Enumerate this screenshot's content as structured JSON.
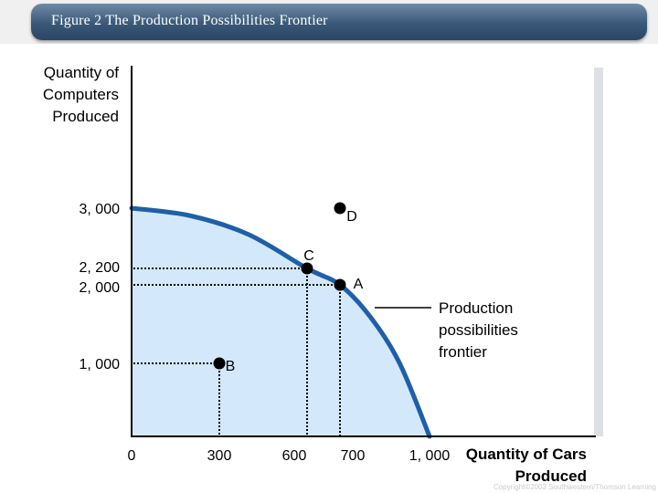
{
  "header": {
    "title": "Figure 2 The Production Possibilities Frontier"
  },
  "copyright": "Copyright©2003 Southwestern/Thomson Learning",
  "colors": {
    "frontier": "#1f5fa8",
    "fill": "#d4e8fb",
    "banner": "#3a5878",
    "dots": "#000000",
    "axis": "#000000"
  },
  "chart_data": {
    "type": "area",
    "title": "",
    "ylabel": "Quantity of Computers Produced",
    "xlabel": "Quantity of Cars Produced",
    "xlim": [
      0,
      1000
    ],
    "ylim": [
      0,
      3000
    ],
    "x_ticks": [
      "0",
      "300",
      "600",
      "700",
      "1, 000"
    ],
    "y_ticks": [
      "1, 000",
      "2, 000",
      "2, 200",
      "3, 000"
    ],
    "frontier": {
      "name": "Production possibilities frontier",
      "points": [
        [
          0,
          3000
        ],
        [
          200,
          2900
        ],
        [
          400,
          2650
        ],
        [
          600,
          2200
        ],
        [
          700,
          2000
        ],
        [
          800,
          1600
        ],
        [
          900,
          1000
        ],
        [
          1000,
          0
        ]
      ]
    },
    "points": [
      {
        "label": "A",
        "x": 700,
        "y": 2000
      },
      {
        "label": "B",
        "x": 300,
        "y": 1000
      },
      {
        "label": "C",
        "x": 600,
        "y": 2200
      },
      {
        "label": "D",
        "x": 700,
        "y": 3000
      }
    ],
    "annotation": {
      "lines": [
        "Production",
        "possibilities",
        "frontier"
      ]
    }
  }
}
